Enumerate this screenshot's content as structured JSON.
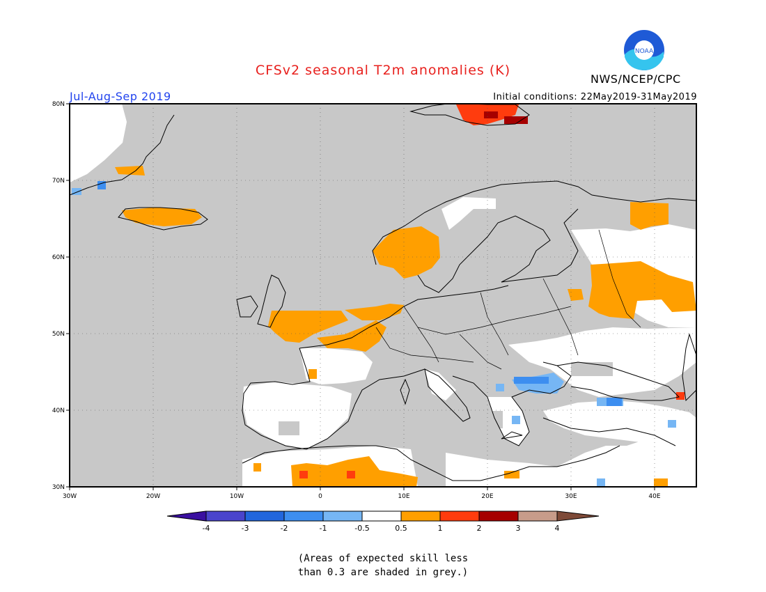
{
  "header": {
    "title": "CFSv2 seasonal T2m anomalies (K)",
    "agency": "NWS/NCEP/CPC",
    "season": "Jul-Aug-Sep 2019",
    "initial_conditions": "Initial conditions: 22May2019-31May2019",
    "logo_text": "NOAA"
  },
  "map": {
    "region": "Europe",
    "lon_range": [
      -30,
      45
    ],
    "lat_range": [
      30,
      80
    ],
    "lon_ticks": [
      "30W",
      "20W",
      "10W",
      "0",
      "10E",
      "20E",
      "30E",
      "40E"
    ],
    "lat_ticks": [
      "80N",
      "70N",
      "60N",
      "50N",
      "40N",
      "30N"
    ],
    "grey_meaning": "skill < 0.3",
    "colors": {
      "grey_low_skill": "#c8c8c8",
      "ocean_frame": "#c8c8c8",
      "neutral": "#ffffff",
      "coast": "#000000"
    }
  },
  "legend": {
    "labels": [
      "-4",
      "-3",
      "-2",
      "-1",
      "-0.5",
      "0.5",
      "1",
      "2",
      "3",
      "4"
    ],
    "colors": [
      "#3a0fa0",
      "#4a44cc",
      "#2266dd",
      "#3d8ef0",
      "#76b6f4",
      "#ffffff",
      "#ff9f00",
      "#ff3c0e",
      "#a60000",
      "#c79c8a",
      "#7e4a38"
    ]
  },
  "footnote": {
    "line1": "(Areas of expected skill less",
    "line2": "than 0.3 are shaded in grey.)"
  }
}
